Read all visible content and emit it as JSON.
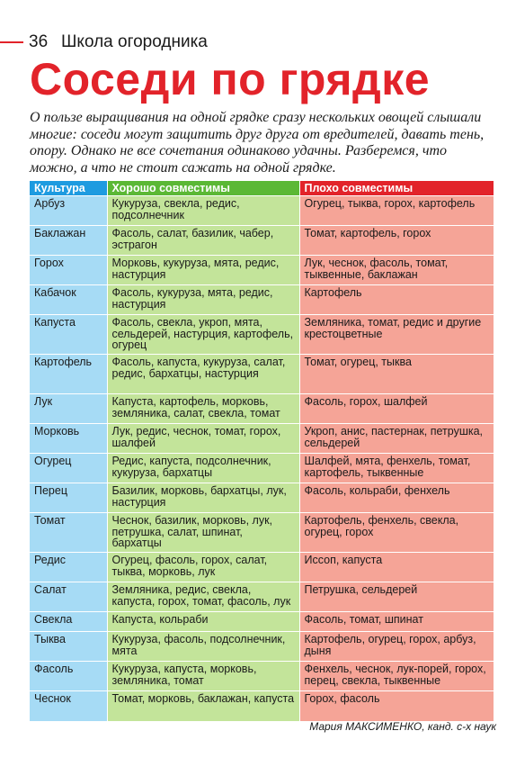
{
  "header": {
    "page_number": "36",
    "section": "Школа огородника"
  },
  "title": "Соседи по грядке",
  "intro": "О пользе выращивания на одной грядке сразу нескольких овощей слышали многие: соседи могут защитить друг друга от вредителей, давать тень, опору. Однако не все сочетания одинаково удачны. Разберемся, что можно, а что не стоит сажать на одной грядке.",
  "table": {
    "headers": [
      "Культура",
      "Хорошо совместимы",
      "Плохо совместимы"
    ],
    "rows": [
      {
        "crop": "Арбуз",
        "good": "Кукуруза, свекла, редис, подсолнечник",
        "bad": "Огурец, тыква, горох, картофель"
      },
      {
        "crop": "Баклажан",
        "good": "Фасоль, салат, базилик, чабер, эстрагон",
        "bad": "Томат, картофель, горох"
      },
      {
        "crop": "Горох",
        "good": "Морковь, кукуруза, мята, редис, настурция",
        "bad": "Лук, чеснок, фасоль, томат, тыквенные, баклажан"
      },
      {
        "crop": "Кабачок",
        "good": "Фасоль, кукуруза, мята, редис, настурция",
        "bad": "Картофель"
      },
      {
        "crop": "Капуста",
        "good": "Фасоль, свекла, укроп, мята, сельдерей, настурция, картофель, огурец",
        "bad": "Земляника, томат, редис и другие крестоцветные"
      },
      {
        "crop": "Картофель",
        "good": "Фасоль, капуста, кукуруза, салат, редис, бархатцы, настурция",
        "bad": "Томат, огурец, тыква"
      },
      {
        "crop": "Лук",
        "good": "Капуста, картофель, морковь, земляника, салат, свекла, томат",
        "bad": "Фасоль, горох, шалфей"
      },
      {
        "crop": "Морковь",
        "good": "Лук, редис, чеснок, томат, горох, шалфей",
        "bad": "Укроп, анис, пастернак, петрушка, сельдерей"
      },
      {
        "crop": "Огурец",
        "good": "Редис, капуста, подсолнечник, кукуруза, бархатцы",
        "bad": "Шалфей, мята, фенхель, томат, картофель, тыквенные"
      },
      {
        "crop": "Перец",
        "good": "Базилик, морковь, бархатцы, лук, настурция",
        "bad": "Фасоль, кольраби, фенхель"
      },
      {
        "crop": "Томат",
        "good": "Чеснок, базилик, морковь, лук, петрушка, салат, шпинат, бархатцы",
        "bad": "Картофель, фенхель, свекла, огурец, горох"
      },
      {
        "crop": "Редис",
        "good": "Огурец, фасоль, горох, салат, тыква, морковь, лук",
        "bad": "Иссоп, капуста"
      },
      {
        "crop": "Салат",
        "good": "Земляника, редис, свекла, капуста, горох, томат, фасоль, лук",
        "bad": "Петрушка, сельдерей"
      },
      {
        "crop": "Свекла",
        "good": "Капуста, кольраби",
        "bad": "Фасоль, томат, шпинат"
      },
      {
        "crop": "Тыква",
        "good": "Кукуруза, фасоль, подсолнечник, мята",
        "bad": "Картофель, огурец, горох, арбуз, дыня"
      },
      {
        "crop": "Фасоль",
        "good": "Кукуруза, капуста, морковь, земляника, томат",
        "bad": "Фенхель, чеснок, лук-порей, горох, перец, свекла, тыквенные"
      },
      {
        "crop": "Чеснок",
        "good": "Томат, морковь, баклажан, капуста",
        "bad": "Горох, фасоль"
      }
    ]
  },
  "author": "Мария МАКСИМЕНКО, канд. с-х наук"
}
